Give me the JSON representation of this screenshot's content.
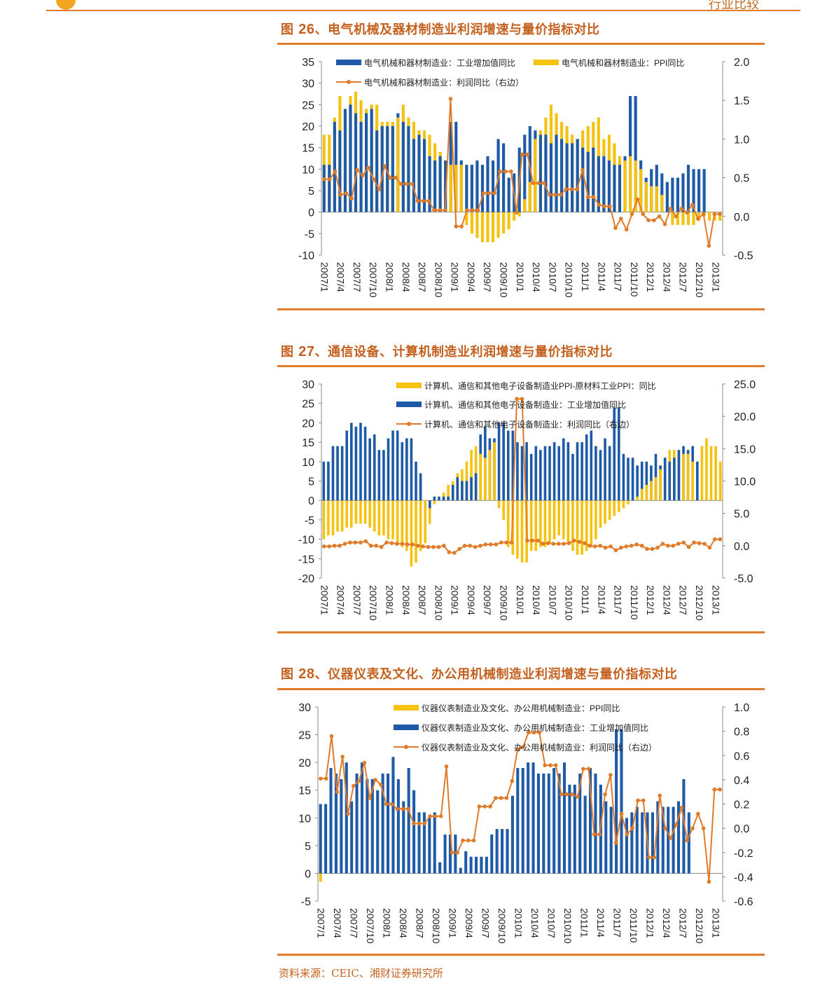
{
  "header": {
    "text": "行业比较"
  },
  "source": "资料来源：CEIC、湘财证券研究所",
  "figures": [
    {
      "label_prefix": "图",
      "label_num": "26",
      "label_text": "、电气机械及器材制造业利润增速与量价指标对比",
      "chart_data": {
        "type": "bar+line",
        "x_ticks": [
          "2007/1",
          "2007/4",
          "2007/7",
          "2007/10",
          "2008/1",
          "2008/4",
          "2008/7",
          "2008/10",
          "2009/1",
          "2009/4",
          "2009/7",
          "2009/10",
          "2010/1",
          "2010/4",
          "2010/7",
          "2010/10",
          "2011/1",
          "2011/4",
          "2011/7",
          "2011/10",
          "2012/1",
          "2012/4",
          "2012/7",
          "2012/10",
          "2013/1"
        ],
        "y_left": {
          "min": -10,
          "max": 35,
          "step": 5,
          "ticks": [
            "-10",
            "-5",
            "0",
            "5",
            "10",
            "15",
            "20",
            "25",
            "30",
            "35"
          ]
        },
        "y_right": {
          "min": -0.5,
          "max": 2.0,
          "step": 0.5,
          "ticks": [
            "-0.5",
            "0.0",
            "0.5",
            "1.0",
            "1.5",
            "2.0"
          ]
        },
        "legend": [
          "电气机械和器材制造业：工业增加值同比",
          "电气机械和器材制造业：PPI同比",
          "电气机械和器材制造业：利润同比（右边）"
        ],
        "series_colors": {
          "iva": "#1f5aa6",
          "ppi": "#f5c30f",
          "profit": "#e07b2a"
        },
        "iva": [
          11,
          11,
          21,
          19,
          24,
          25,
          23,
          21,
          23,
          24,
          19,
          20,
          20,
          20,
          23,
          21,
          20,
          17,
          18,
          17,
          13,
          12,
          13,
          12,
          21,
          21,
          12,
          11,
          11,
          12,
          11,
          13,
          12,
          17,
          16,
          8,
          9,
          15,
          18,
          20,
          19,
          18,
          18,
          16,
          18,
          17,
          16,
          16,
          17,
          15,
          14,
          15,
          13,
          13,
          12,
          11,
          11,
          13,
          27,
          27,
          12,
          8,
          10,
          11,
          9,
          7,
          8,
          8,
          9,
          11,
          10,
          10,
          10
        ],
        "ppi": [
          18,
          18,
          22,
          27,
          24,
          27,
          28,
          26,
          24,
          25,
          25,
          21,
          21,
          21,
          22,
          25,
          22,
          21,
          19,
          19,
          18,
          16,
          14,
          12,
          11,
          11,
          11,
          -3,
          -5,
          -6,
          -7,
          -7,
          -7,
          -6,
          -5,
          -4,
          -2,
          -1,
          3,
          7,
          17,
          19,
          22,
          25,
          23,
          21,
          20,
          18,
          17,
          19,
          20,
          21,
          22,
          17,
          18,
          16,
          13,
          12,
          13,
          12,
          10,
          7,
          6,
          6,
          4,
          0,
          -3,
          -3,
          -3,
          -3,
          -3,
          -2,
          -1,
          -2,
          -2,
          -2
        ],
        "profit": [
          0.48,
          0.48,
          0.58,
          0.28,
          0.3,
          0.23,
          0.6,
          0.53,
          0.63,
          0.48,
          0.35,
          0.65,
          0.5,
          0.5,
          0.42,
          0.42,
          0.42,
          0.2,
          0.2,
          0.2,
          0.08,
          0.08,
          0.08,
          1.52,
          -0.13,
          -0.13,
          0.08,
          0.08,
          0.08,
          0.3,
          0.3,
          0.3,
          0.58,
          0.58,
          0.58,
          0.05,
          0.8,
          0.8,
          0.43,
          0.43,
          0.43,
          0.28,
          0.28,
          0.28,
          0.35,
          0.35,
          0.35,
          0.6,
          0.25,
          0.25,
          0.15,
          0.13,
          0.13,
          -0.15,
          -0.03,
          -0.17,
          0.03,
          0.22,
          0.03,
          -0.05,
          -0.05,
          0.0,
          -0.1,
          0.1,
          0.0,
          0.1,
          0.05,
          0.15,
          -0.03,
          0.03,
          -0.38,
          0.03,
          0.03
        ]
      }
    },
    {
      "label_prefix": "图",
      "label_num": "27",
      "label_text": "、通信设备、计算机制造业利润增速与量价指标对比",
      "chart_data": {
        "type": "bar+line",
        "x_ticks": [
          "2007/1",
          "2007/4",
          "2007/7",
          "2007/10",
          "2008/1",
          "2008/4",
          "2008/7",
          "2008/10",
          "2009/1",
          "2009/4",
          "2009/7",
          "2009/10",
          "2010/1",
          "2010/4",
          "2010/7",
          "2010/10",
          "2011/1",
          "2011/4",
          "2011/7",
          "2011/10",
          "2012/1",
          "2012/4",
          "2012/7",
          "2012/10",
          "2013/1"
        ],
        "y_left": {
          "min": -20,
          "max": 30,
          "step": 5,
          "ticks": [
            "-20",
            "-15",
            "-10",
            "-5",
            "0",
            "5",
            "10",
            "15",
            "20",
            "25",
            "30"
          ]
        },
        "y_right": {
          "min": -5.0,
          "max": 25.0,
          "step": 5.0,
          "ticks": [
            "-5.0",
            "0.0",
            "5.0",
            "10.0",
            "15.0",
            "20.0",
            "25.0"
          ]
        },
        "legend": [
          "计算机、通信和其他电子设备制造业PPI-原材料工业PPI：同比",
          "计算机、通信和其他电子设备制造业：工业增加值同比",
          "计算机、通信和其他电子设备制造业：利润同比（右边）"
        ],
        "series_colors": {
          "iva": "#1f5aa6",
          "ppi": "#f5c30f",
          "profit": "#e07b2a"
        },
        "ppi": [
          -10,
          -9,
          -9,
          -8,
          -8,
          -7,
          -7,
          -6,
          -6,
          -6,
          -7,
          -8,
          -9,
          -9,
          -10,
          -10,
          -11,
          -12,
          -13,
          -17,
          -16,
          -13,
          -11,
          -6,
          -1,
          0,
          2,
          4,
          5,
          7,
          8,
          10,
          13,
          14,
          12,
          11,
          13,
          15,
          -2,
          -5,
          -12,
          -14,
          -15,
          -16,
          -16,
          -13,
          -13,
          -12,
          -12,
          -11,
          -10,
          -9,
          -10,
          -11,
          -13,
          -14,
          -14,
          -13,
          -12,
          -10,
          -7,
          -6,
          -5,
          -4,
          -3,
          -2,
          -1,
          0,
          1,
          3,
          4,
          5,
          6,
          8,
          11,
          13,
          13,
          13,
          12,
          12,
          10,
          10,
          14,
          16,
          14,
          14,
          10
        ],
        "iva": [
          10,
          10,
          14,
          14,
          14,
          18,
          20,
          19,
          20,
          19,
          16,
          17,
          13,
          13,
          16,
          18,
          18,
          15,
          16,
          16,
          10,
          7,
          0,
          -2,
          1,
          1,
          1,
          1,
          4,
          6,
          5,
          5,
          6,
          7,
          17,
          19,
          16,
          16,
          20,
          20,
          18,
          18,
          15,
          14,
          15,
          12,
          14,
          13,
          14,
          14,
          15,
          14,
          16,
          15,
          12,
          15,
          15,
          17,
          18,
          14,
          13,
          16,
          14,
          24,
          24,
          12,
          11,
          11,
          9,
          10,
          10,
          9,
          12,
          9,
          11,
          10,
          11,
          13,
          14,
          13,
          14,
          10
        ],
        "profit": [
          -0.1,
          -0.1,
          0.0,
          0.0,
          0.3,
          0.5,
          0.5,
          0.5,
          0.7,
          0.0,
          0.0,
          -0.2,
          0.5,
          0.4,
          0.3,
          0.3,
          0.2,
          0.2,
          0.0,
          -0.1,
          -0.2,
          -0.2,
          -0.2,
          0.0,
          -1.0,
          -1.1,
          -0.5,
          0.0,
          0.0,
          -0.2,
          0.0,
          0.2,
          0.2,
          0.2,
          0.5,
          0.5,
          0.5,
          22.7,
          22.7,
          0.8,
          0.8,
          0.8,
          0.3,
          0.4,
          0.3,
          0.3,
          0.3,
          0.4,
          0.8,
          0.6,
          0.4,
          0.0,
          -0.1,
          0.0,
          -0.3,
          -0.1,
          -0.7,
          -0.3,
          -0.1,
          0.0,
          0.2,
          0.0,
          -0.5,
          -0.5,
          -0.3,
          0.3,
          0.0,
          0.0,
          0.3,
          0.5,
          -0.2,
          0.5,
          0.4,
          0.3,
          -0.3,
          1.0,
          1.0
        ]
      }
    },
    {
      "label_prefix": "图",
      "label_num": "28",
      "label_text": "、仪器仪表及文化、办公用机械制造业利润增速与量价指标对比",
      "chart_data": {
        "type": "bar+line",
        "x_ticks": [
          "2007/1",
          "2007/4",
          "2007/7",
          "2007/10",
          "2008/1",
          "2008/4",
          "2008/7",
          "2008/10",
          "2009/1",
          "2009/4",
          "2009/7",
          "2009/10",
          "2010/1",
          "2010/4",
          "2010/7",
          "2010/10",
          "2011/1",
          "2011/4",
          "2011/7",
          "2011/10",
          "2012/1",
          "2012/4",
          "2012/7",
          "2012/10",
          "2013/1"
        ],
        "y_left": {
          "min": -5,
          "max": 30,
          "step": 5,
          "ticks": [
            "-5",
            "0",
            "5",
            "10",
            "15",
            "20",
            "25",
            "30"
          ]
        },
        "y_right": {
          "min": -0.6,
          "max": 1.0,
          "step": 0.2,
          "ticks": [
            "-0.6",
            "-0.4",
            "-0.2",
            "0.0",
            "0.2",
            "0.4",
            "0.6",
            "0.8",
            "1.0"
          ]
        },
        "legend": [
          "仪器仪表制造业及文化、办公用机械制造业：PPI同比",
          "仪器仪表制造业及文化、办公用机械制造业：工业增加值同比",
          "仪器仪表制造业及文化、办公用机械制造业：利润同比（右边）"
        ],
        "series_colors": {
          "iva": "#1f5aa6",
          "ppi": "#f5c30f",
          "profit": "#e07b2a"
        },
        "ppi": [
          -1.5,
          0,
          0,
          0,
          0,
          0,
          0,
          0,
          0,
          0,
          0,
          0,
          0,
          0,
          0,
          0,
          0,
          0,
          0,
          0,
          0,
          0,
          0,
          0,
          0,
          0,
          0,
          0,
          0,
          0,
          0,
          0,
          0,
          0,
          0,
          0,
          0,
          0,
          0,
          0,
          0,
          0,
          0,
          0,
          0,
          0,
          0,
          0,
          0,
          0,
          0,
          0,
          0,
          0,
          0,
          0,
          0,
          0,
          0,
          0,
          0,
          0,
          0,
          0,
          0,
          0,
          0,
          0,
          0,
          0,
          0,
          0,
          0,
          0,
          0,
          0,
          0,
          0
        ],
        "iva": [
          12.5,
          12.5,
          19,
          18,
          17,
          20,
          13,
          18,
          20,
          17,
          17,
          15,
          18,
          18,
          21,
          17,
          13,
          19,
          15,
          11,
          11,
          10,
          11,
          2,
          7,
          7,
          7,
          1,
          4,
          3,
          3,
          3,
          3,
          7,
          8,
          8,
          8,
          14,
          19,
          19,
          20,
          20,
          18,
          18,
          18,
          19,
          18,
          20,
          16,
          16,
          18,
          14,
          19,
          18,
          16,
          13,
          12,
          26,
          26,
          10,
          11,
          12,
          11,
          11,
          11,
          13,
          12,
          12,
          12,
          13,
          17,
          11
        ],
        "profit": [
          0.41,
          0.41,
          0.76,
          0.3,
          0.59,
          0.12,
          0.35,
          0.39,
          0.54,
          0.25,
          0.4,
          0.36,
          0.2,
          0.2,
          0.16,
          0.16,
          0.16,
          0.04,
          0.04,
          0.04,
          0.1,
          0.1,
          0.1,
          0.51,
          -0.2,
          -0.2,
          -0.1,
          -0.1,
          -0.1,
          0.18,
          0.18,
          0.18,
          0.25,
          0.25,
          0.25,
          0.39,
          0.65,
          0.67,
          0.79,
          0.79,
          0.79,
          0.52,
          0.52,
          0.52,
          0.28,
          0.28,
          0.28,
          0.26,
          0.49,
          0.49,
          -0.05,
          -0.05,
          0.28,
          0.44,
          -0.12,
          0.12,
          -0.05,
          0.0,
          0.23,
          0.23,
          -0.24,
          -0.24,
          0.27,
          0.0,
          -0.08,
          0.03,
          0.17,
          -0.1,
          0.0,
          0.12,
          0.0,
          -0.44,
          0.32,
          0.32
        ]
      }
    }
  ]
}
